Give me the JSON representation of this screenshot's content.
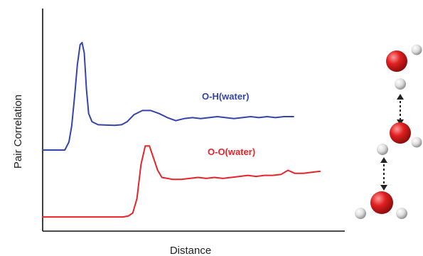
{
  "chart_data": {
    "type": "line",
    "title": "",
    "xlabel": "Distance",
    "ylabel": "Pair Correlation",
    "grid": false,
    "legend": "inline labels",
    "xlim": [
      0,
      100
    ],
    "ylim": [
      0,
      100
    ],
    "series": [
      {
        "name": "O-H(water)",
        "color": "#3344aa",
        "x": [
          0,
          8,
          9.5,
          10.5,
          11.5,
          12.5,
          13.5,
          14.2,
          15.0,
          15.8,
          16.6,
          17.8,
          20,
          23,
          26,
          28.5,
          30.5,
          33,
          36,
          39,
          42,
          45,
          48,
          51,
          54,
          57,
          60,
          63,
          66,
          69,
          72,
          75,
          78,
          81,
          84,
          87,
          90.5
        ],
        "y": [
          40,
          40,
          44,
          52,
          66,
          82,
          92,
          93,
          88,
          70,
          58,
          54,
          52.5,
          52.3,
          52.2,
          52.5,
          54,
          57.5,
          59.5,
          59.5,
          58,
          56,
          54.5,
          55.5,
          56,
          55.5,
          56,
          56.5,
          56,
          55.5,
          56,
          56.5,
          56,
          56.5,
          56,
          56.5,
          56.5
        ]
      },
      {
        "name": "O-O(water)",
        "color": "#e8232a",
        "x": [
          0,
          26,
          29,
          31,
          32.5,
          34,
          35.5,
          37,
          38.5,
          40,
          41.5,
          43,
          45,
          47,
          50,
          53,
          56,
          59,
          62,
          65,
          68,
          71,
          74,
          77,
          80,
          83,
          86,
          88.5,
          91,
          94,
          100
        ],
        "y": [
          7,
          7,
          7,
          7.5,
          9,
          16,
          33,
          42,
          42,
          36,
          30,
          26.5,
          26,
          25.5,
          25.5,
          26,
          26.5,
          26,
          26.5,
          26,
          26.5,
          27,
          27.5,
          27,
          27.5,
          27.5,
          28,
          30,
          28.5,
          28.5,
          29.5
        ]
      }
    ]
  }
}
